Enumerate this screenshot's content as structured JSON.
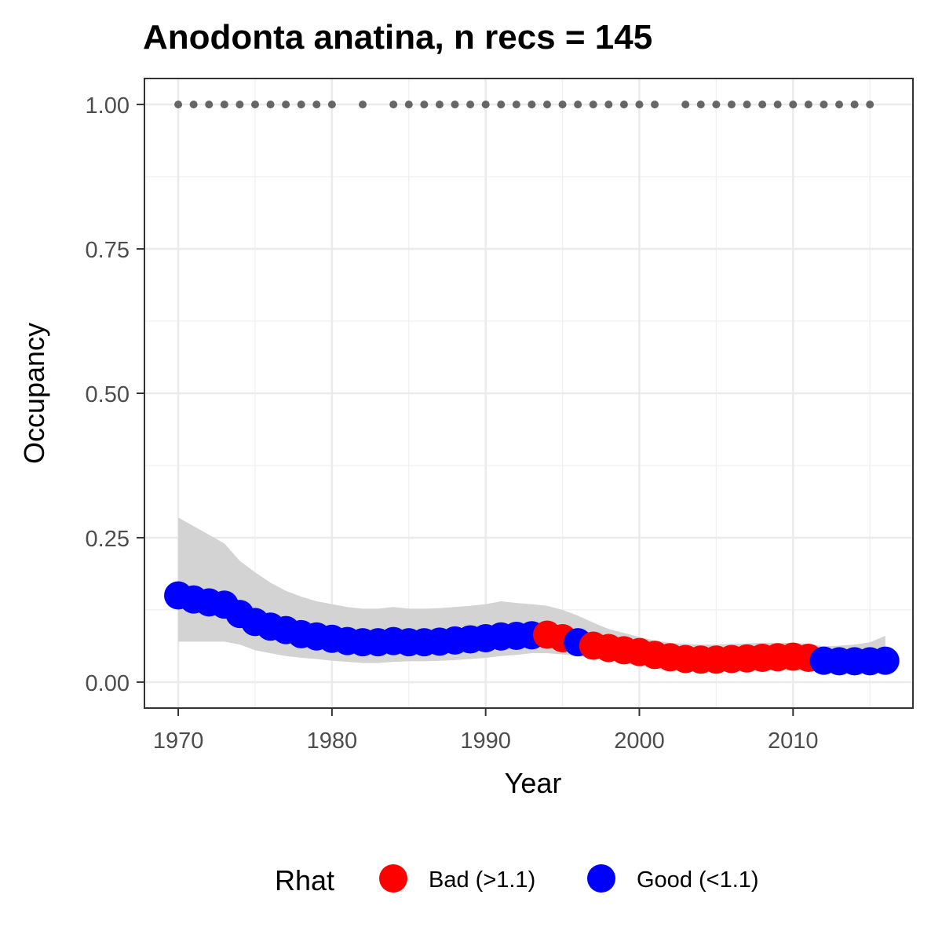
{
  "chart_data": {
    "type": "line",
    "title": "Anodonta anatina, n recs = 145",
    "xlabel": "Year",
    "ylabel": "Occupancy",
    "xlim": [
      1967.8,
      2017.8
    ],
    "ylim": [
      -0.045,
      1.045
    ],
    "x_ticks": [
      1970,
      1980,
      1990,
      2000,
      2010
    ],
    "x_tick_labels": [
      "1970",
      "1980",
      "1990",
      "2000",
      "2010"
    ],
    "y_ticks": [
      0,
      0.25,
      0.5,
      0.75,
      1.0
    ],
    "y_tick_labels": [
      "0.00",
      "0.25",
      "0.50",
      "0.75",
      "1.00"
    ],
    "grid": true,
    "legend": {
      "title": "Rhat",
      "position": "bottom",
      "entries": [
        {
          "label": "Bad (>1.1)",
          "color": "#ff0000"
        },
        {
          "label": "Good (<1.1)",
          "color": "#0000ff"
        }
      ]
    },
    "records": {
      "color": "#666666",
      "y": 1.0,
      "years": [
        1970,
        1971,
        1972,
        1973,
        1974,
        1975,
        1976,
        1977,
        1978,
        1979,
        1980,
        1982,
        1984,
        1985,
        1986,
        1987,
        1988,
        1989,
        1990,
        1991,
        1992,
        1993,
        1994,
        1995,
        1996,
        1997,
        1998,
        1999,
        2000,
        2001,
        2003,
        2004,
        2005,
        2006,
        2007,
        2008,
        2009,
        2010,
        2011,
        2012,
        2013,
        2014,
        2015
      ]
    },
    "ribbon": {
      "color": "#d3d3d3",
      "x": [
        1970,
        1971,
        1972,
        1973,
        1974,
        1975,
        1976,
        1977,
        1978,
        1979,
        1980,
        1981,
        1982,
        1983,
        1984,
        1985,
        1986,
        1987,
        1988,
        1989,
        1990,
        1991,
        1992,
        1993,
        1994,
        1995,
        1996,
        1997,
        1998,
        1999,
        2000,
        2001,
        2002,
        2003,
        2004,
        2005,
        2006,
        2007,
        2008,
        2009,
        2010,
        2011,
        2012,
        2013,
        2014,
        2015,
        2016
      ],
      "lower": [
        0.07,
        0.07,
        0.07,
        0.07,
        0.065,
        0.055,
        0.05,
        0.045,
        0.042,
        0.04,
        0.037,
        0.035,
        0.033,
        0.033,
        0.035,
        0.036,
        0.036,
        0.037,
        0.038,
        0.04,
        0.042,
        0.045,
        0.047,
        0.05,
        0.05,
        0.048,
        0.045,
        0.042,
        0.038,
        0.033,
        0.028,
        0.023,
        0.02,
        0.018,
        0.017,
        0.017,
        0.018,
        0.019,
        0.02,
        0.021,
        0.022,
        0.022,
        0.02,
        0.018,
        0.017,
        0.016,
        0.015
      ],
      "upper": [
        0.285,
        0.27,
        0.255,
        0.24,
        0.21,
        0.19,
        0.172,
        0.158,
        0.148,
        0.14,
        0.135,
        0.13,
        0.127,
        0.127,
        0.13,
        0.127,
        0.127,
        0.128,
        0.13,
        0.132,
        0.135,
        0.14,
        0.137,
        0.135,
        0.132,
        0.125,
        0.115,
        0.103,
        0.092,
        0.085,
        0.078,
        0.072,
        0.068,
        0.066,
        0.065,
        0.065,
        0.066,
        0.067,
        0.068,
        0.068,
        0.068,
        0.066,
        0.062,
        0.063,
        0.065,
        0.069,
        0.08
      ]
    },
    "series": [
      {
        "x": [
          1970,
          1971,
          1972,
          1973,
          1974,
          1975,
          1976,
          1977,
          1978,
          1979,
          1980,
          1981,
          1982,
          1983,
          1984,
          1985,
          1986,
          1987,
          1988,
          1989,
          1990,
          1991,
          1992,
          1993,
          1994,
          1995,
          1996,
          1997,
          1998,
          1999,
          2000,
          2001,
          2002,
          2003,
          2004,
          2005,
          2006,
          2007,
          2008,
          2009,
          2010,
          2011,
          2012,
          2013,
          2014,
          2015,
          2016
        ],
        "y": [
          0.15,
          0.143,
          0.138,
          0.134,
          0.118,
          0.104,
          0.096,
          0.09,
          0.083,
          0.079,
          0.075,
          0.071,
          0.069,
          0.069,
          0.071,
          0.069,
          0.069,
          0.07,
          0.072,
          0.074,
          0.076,
          0.079,
          0.08,
          0.081,
          0.082,
          0.076,
          0.069,
          0.063,
          0.059,
          0.055,
          0.052,
          0.047,
          0.043,
          0.04,
          0.039,
          0.039,
          0.04,
          0.041,
          0.042,
          0.043,
          0.044,
          0.042,
          0.037,
          0.036,
          0.036,
          0.036,
          0.037
        ],
        "rhat": [
          "good",
          "good",
          "good",
          "good",
          "good",
          "good",
          "good",
          "good",
          "good",
          "good",
          "good",
          "good",
          "good",
          "good",
          "good",
          "good",
          "good",
          "good",
          "good",
          "good",
          "good",
          "good",
          "good",
          "good",
          "bad",
          "bad",
          "good",
          "bad",
          "bad",
          "bad",
          "bad",
          "bad",
          "bad",
          "bad",
          "bad",
          "bad",
          "bad",
          "bad",
          "bad",
          "bad",
          "bad",
          "bad",
          "good",
          "good",
          "good",
          "good",
          "good"
        ]
      }
    ]
  }
}
